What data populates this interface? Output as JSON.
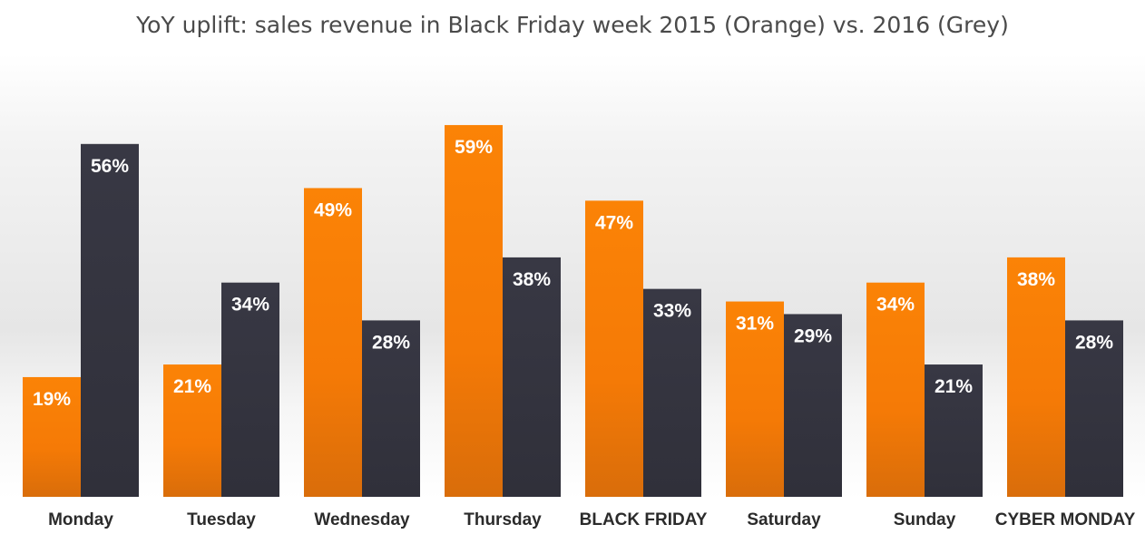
{
  "chart_data": {
    "type": "bar",
    "title": "YoY uplift: sales revenue in Black Friday week 2015 (Orange) vs. 2016 (Grey)",
    "categories": [
      "Monday",
      "Tuesday",
      "Wednesday",
      "Thursday",
      "BLACK FRIDAY",
      "Saturday",
      "Sunday",
      "CYBER MONDAY"
    ],
    "series": [
      {
        "color": "#f97e07",
        "values": [
          19,
          21,
          49,
          59,
          47,
          31,
          34,
          38
        ],
        "labels": [
          "19%",
          "21%",
          "49%",
          "59%",
          "47%",
          "31%",
          "34%",
          "38%"
        ]
      },
      {
        "color": "#353540",
        "values": [
          56,
          34,
          28,
          38,
          33,
          29,
          21,
          28
        ],
        "labels": [
          "56%",
          "34%",
          "28%",
          "38%",
          "33%",
          "29%",
          "21%",
          "28%"
        ]
      }
    ],
    "ylim": [
      0,
      60
    ],
    "grid": false,
    "legend": "none"
  }
}
